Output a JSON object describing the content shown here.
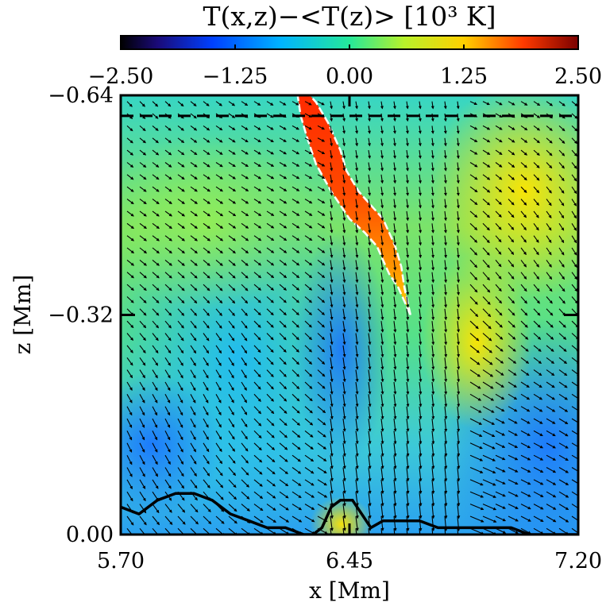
{
  "chart_data": {
    "type": "heatmap",
    "title": "T(x,z)−<T(z)> [10³ K]",
    "xlabel": "x [Mm]",
    "ylabel": "z [Mm]",
    "xlim": [
      5.7,
      7.2
    ],
    "ylim": [
      0.0,
      -0.64
    ],
    "x_ticks": [
      "5.70",
      "6.45",
      "7.20"
    ],
    "y_ticks": [
      "−0.64",
      "−0.32",
      "0.00"
    ],
    "colorbar": {
      "range": [
        -2.5,
        2.5
      ],
      "ticks": [
        "−2.50",
        "−1.25",
        "0.00",
        "1.25",
        "2.50"
      ],
      "colormap": "jet-like"
    },
    "dashed_line_z": -0.61,
    "hot_plume_outline_x": [
      6.65,
      6.63,
      6.62,
      6.6,
      6.58,
      6.56,
      6.52,
      6.48,
      6.44,
      6.42,
      6.38,
      6.34,
      6.32,
      6.3,
      6.28,
      6.29,
      6.31,
      6.34,
      6.39,
      6.45,
      6.5,
      6.54,
      6.56,
      6.58,
      6.61,
      6.63,
      6.64,
      6.65
    ],
    "hot_plume_outline_z": [
      -0.32,
      -0.36,
      -0.39,
      -0.42,
      -0.44,
      -0.46,
      -0.48,
      -0.5,
      -0.53,
      -0.56,
      -0.6,
      -0.63,
      -0.64,
      -0.64,
      -0.64,
      -0.61,
      -0.58,
      -0.54,
      -0.5,
      -0.46,
      -0.44,
      -0.42,
      -0.4,
      -0.38,
      -0.36,
      -0.34,
      -0.33,
      -0.32
    ],
    "surface_line_x": [
      5.7,
      5.76,
      5.82,
      5.88,
      5.94,
      6.0,
      6.06,
      6.12,
      6.18,
      6.24,
      6.3,
      6.33,
      6.36,
      6.39,
      6.42,
      6.46,
      6.49,
      6.52,
      6.56,
      6.62,
      6.68,
      6.74,
      6.8,
      6.86,
      6.92,
      6.98,
      7.04,
      7.1,
      7.2
    ],
    "surface_line_z": [
      -0.04,
      -0.03,
      -0.05,
      -0.06,
      -0.06,
      -0.05,
      -0.03,
      -0.02,
      -0.01,
      -0.01,
      0.0,
      0.0,
      -0.01,
      -0.04,
      -0.05,
      -0.05,
      -0.03,
      -0.01,
      -0.02,
      -0.02,
      -0.02,
      -0.01,
      -0.01,
      -0.01,
      -0.01,
      -0.01,
      0.0,
      0.0,
      0.0
    ]
  }
}
